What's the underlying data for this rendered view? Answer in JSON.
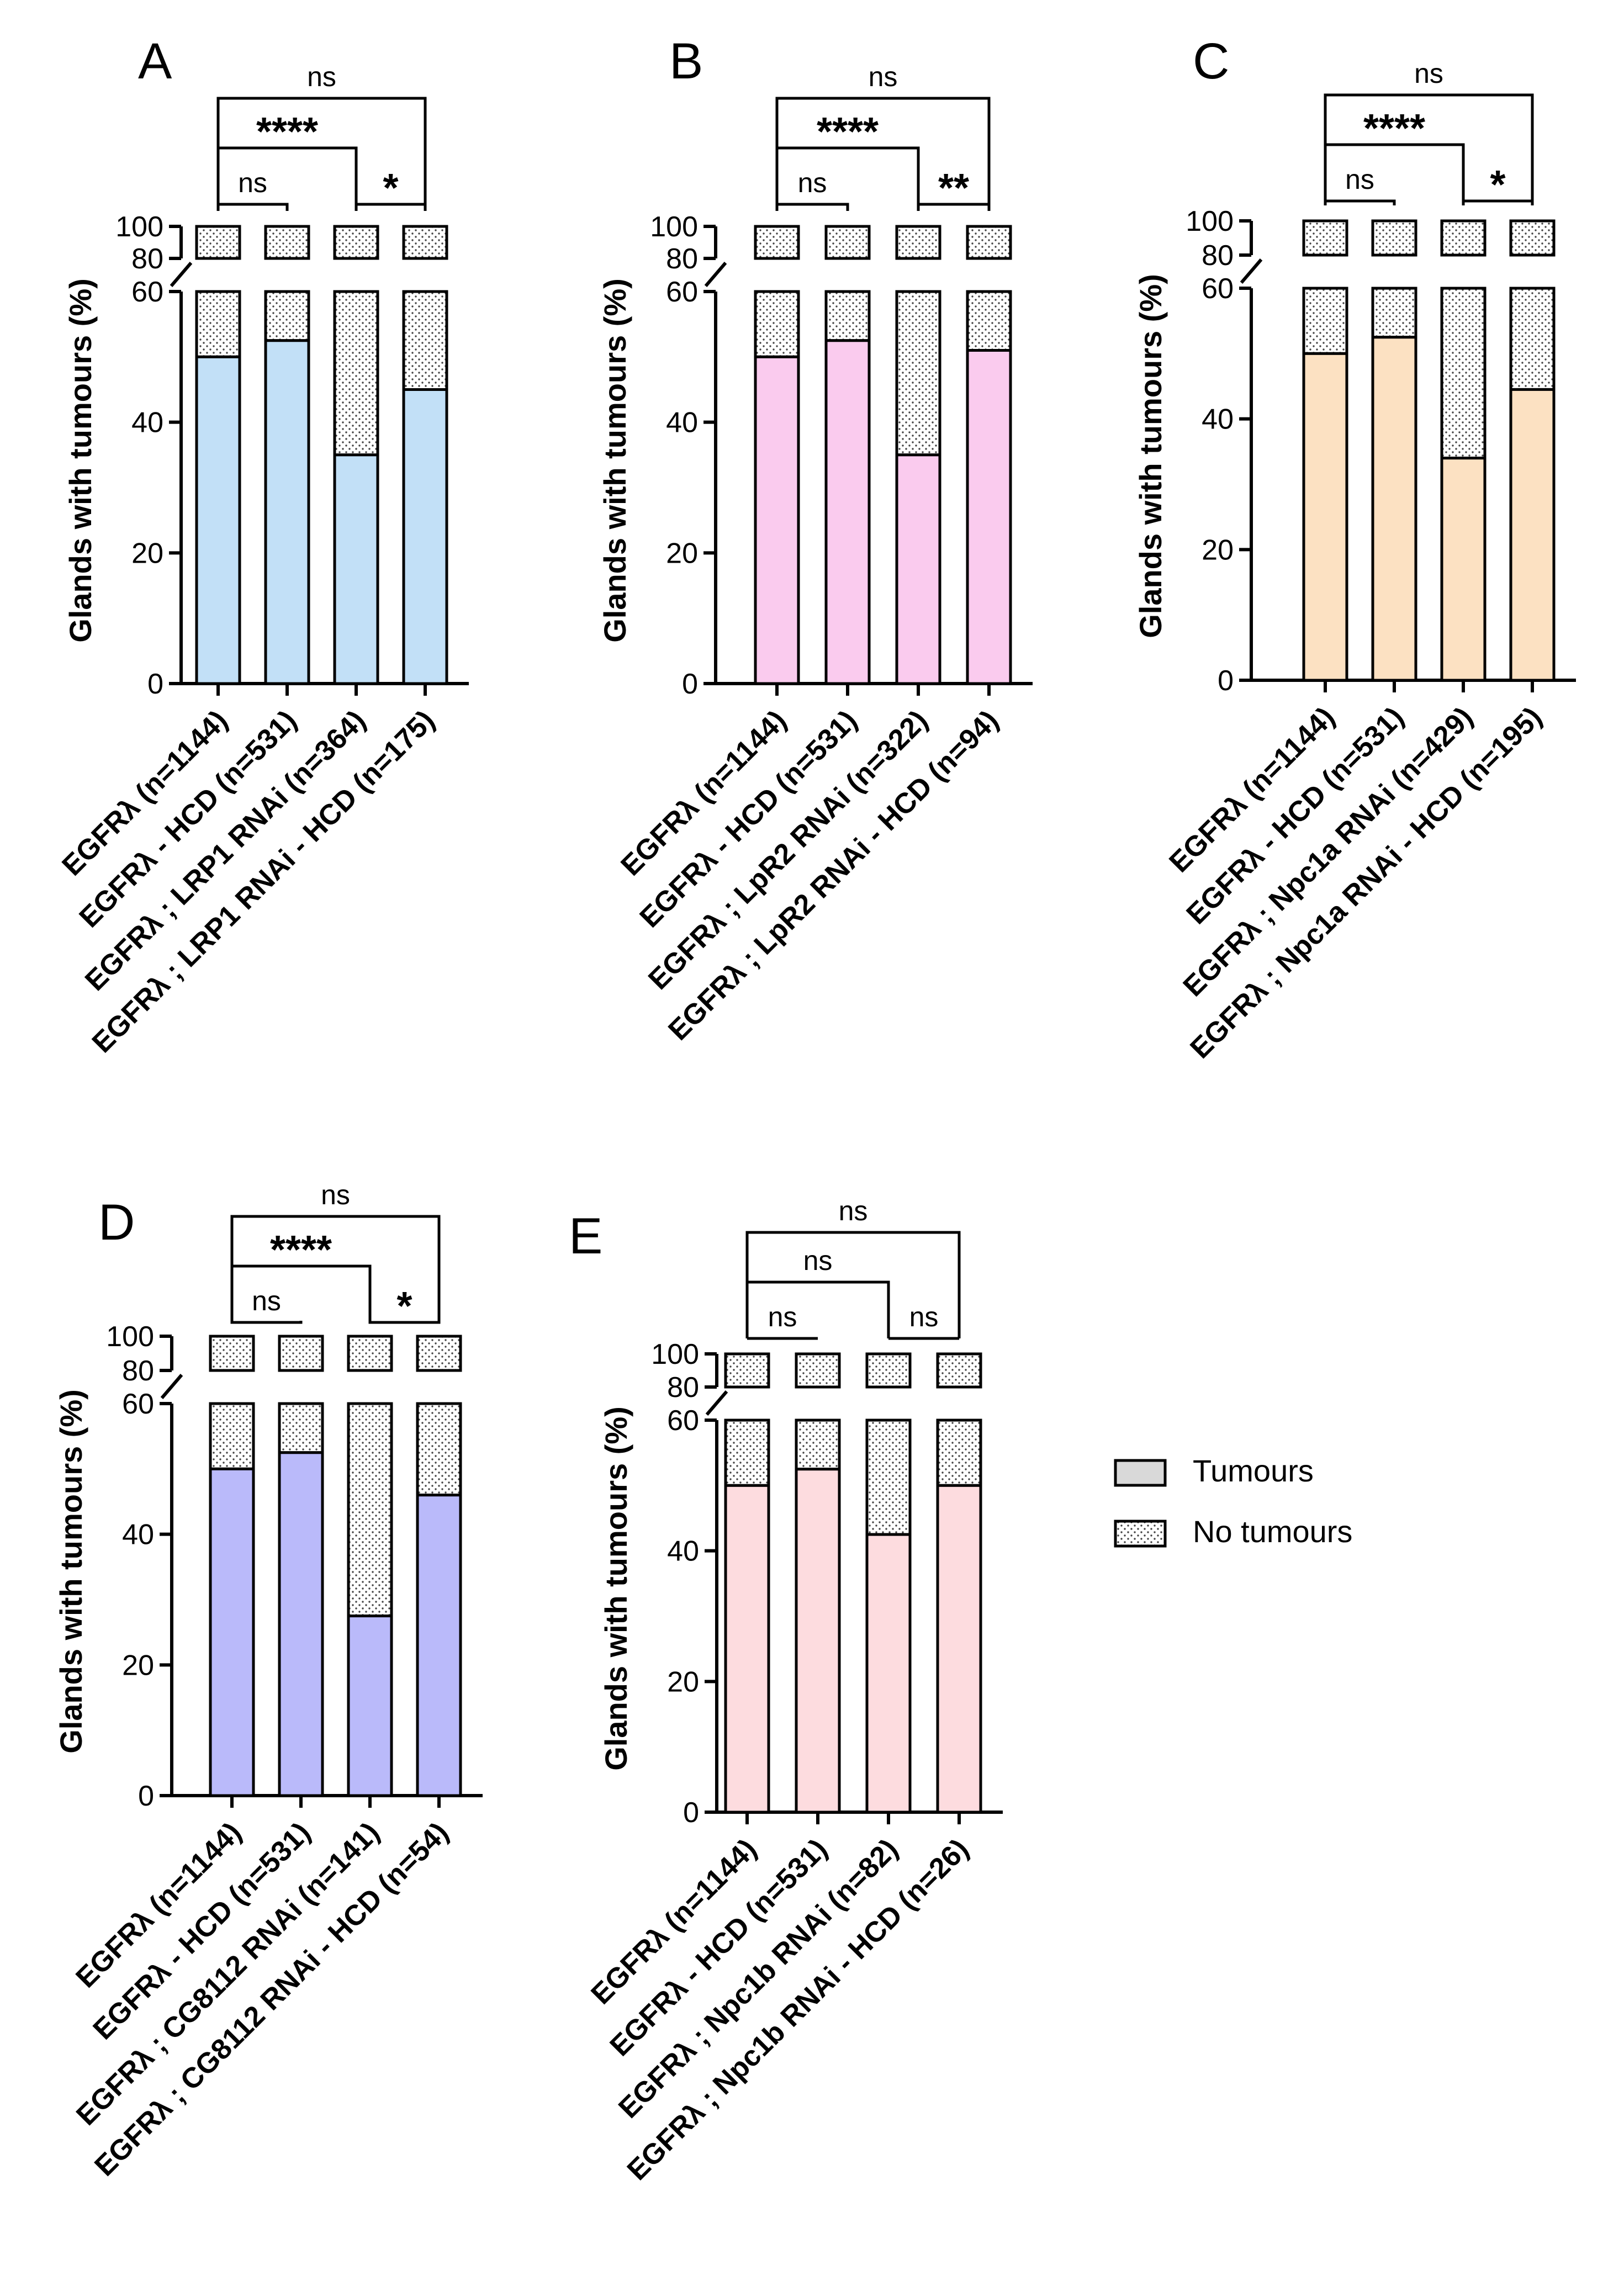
{
  "legend": {
    "items": [
      {
        "label": "Tumours",
        "pattern": "solid",
        "color": "#d9d9d9"
      },
      {
        "label": "No tumours",
        "pattern": "dots",
        "color": "#ffffff"
      }
    ]
  },
  "chart_data": [
    {
      "panel": "A",
      "type": "bar",
      "stacked": true,
      "ylabel": "Glands with tumours (%)",
      "yaxis": {
        "segments": [
          [
            0,
            60
          ],
          [
            80,
            100
          ]
        ],
        "ticks": [
          0,
          20,
          40,
          60,
          80,
          100
        ],
        "break_between": [
          60,
          80
        ]
      },
      "color": "#c2e0f7",
      "categories": [
        "EGFRλ (n=1144)",
        "EGFRλ - HCD (n=531)",
        "EGFRλ ; LRP1 RNAi (n=364)",
        "EGFRλ ; LRP1 RNAi - HCD (n=175)"
      ],
      "series": [
        {
          "name": "Tumours",
          "values": [
            50,
            52.5,
            35,
            45
          ]
        },
        {
          "name": "No tumours",
          "values": [
            50,
            47.5,
            65,
            55
          ]
        }
      ],
      "significance": [
        {
          "from": 0,
          "to": 1,
          "label": "ns",
          "level": 1
        },
        {
          "from": 2,
          "to": 3,
          "label": "*",
          "level": 1
        },
        {
          "from": 0,
          "to": 2,
          "label": "****",
          "level": 2
        },
        {
          "from": 0,
          "to": 3,
          "label": "ns",
          "level": 3
        }
      ]
    },
    {
      "panel": "B",
      "type": "bar",
      "stacked": true,
      "ylabel": "Glands with tumours (%)",
      "yaxis": {
        "segments": [
          [
            0,
            60
          ],
          [
            80,
            100
          ]
        ],
        "ticks": [
          0,
          20,
          40,
          60,
          80,
          100
        ],
        "break_between": [
          60,
          80
        ]
      },
      "color": "#facbee",
      "categories": [
        "EGFRλ (n=1144)",
        "EGFRλ - HCD (n=531)",
        "EGFRλ ; LpR2 RNAi (n=322)",
        "EGFRλ ; LpR2 RNAi - HCD (n=94)"
      ],
      "series": [
        {
          "name": "Tumours",
          "values": [
            50,
            52.5,
            35,
            51
          ]
        },
        {
          "name": "No tumours",
          "values": [
            50,
            47.5,
            65,
            49
          ]
        }
      ],
      "significance": [
        {
          "from": 0,
          "to": 1,
          "label": "ns",
          "level": 1
        },
        {
          "from": 2,
          "to": 3,
          "label": "**",
          "level": 1
        },
        {
          "from": 0,
          "to": 2,
          "label": "****",
          "level": 2
        },
        {
          "from": 0,
          "to": 3,
          "label": "ns",
          "level": 3
        }
      ]
    },
    {
      "panel": "C",
      "type": "bar",
      "stacked": true,
      "ylabel": "Glands with tumours (%)",
      "yaxis": {
        "segments": [
          [
            0,
            60
          ],
          [
            80,
            100
          ]
        ],
        "ticks": [
          0,
          20,
          40,
          60,
          80,
          100
        ],
        "break_between": [
          60,
          80
        ]
      },
      "color": "#fce1c2",
      "categories": [
        "EGFRλ (n=1144)",
        "EGFRλ - HCD (n=531)",
        "EGFRλ ; Npc1a RNAi (n=429)",
        "EGFRλ ; Npc1a RNAi - HCD (n=195)"
      ],
      "series": [
        {
          "name": "Tumours",
          "values": [
            50,
            52.5,
            34,
            44.5
          ]
        },
        {
          "name": "No tumours",
          "values": [
            50,
            47.5,
            66,
            55.5
          ]
        }
      ],
      "significance": [
        {
          "from": 0,
          "to": 1,
          "label": "ns",
          "level": 1
        },
        {
          "from": 2,
          "to": 3,
          "label": "*",
          "level": 1
        },
        {
          "from": 0,
          "to": 2,
          "label": "****",
          "level": 2
        },
        {
          "from": 0,
          "to": 3,
          "label": "ns",
          "level": 3
        }
      ]
    },
    {
      "panel": "D",
      "type": "bar",
      "stacked": true,
      "ylabel": "Glands with tumours (%)",
      "yaxis": {
        "segments": [
          [
            0,
            60
          ],
          [
            80,
            100
          ]
        ],
        "ticks": [
          0,
          20,
          40,
          60,
          80,
          100
        ],
        "break_between": [
          60,
          80
        ]
      },
      "color": "#babafa",
      "categories": [
        "EGFRλ (n=1144)",
        "EGFRλ - HCD (n=531)",
        "EGFRλ ; CG8112 RNAi (n=141)",
        "EGFRλ ; CG8112 RNAi - HCD (n=54)"
      ],
      "series": [
        {
          "name": "Tumours",
          "values": [
            50,
            52.5,
            27.5,
            46
          ]
        },
        {
          "name": "No tumours",
          "values": [
            50,
            47.5,
            72.5,
            54
          ]
        }
      ],
      "significance": [
        {
          "from": 0,
          "to": 1,
          "label": "ns",
          "level": 1
        },
        {
          "from": 2,
          "to": 3,
          "label": "*",
          "level": 1
        },
        {
          "from": 0,
          "to": 2,
          "label": "****",
          "level": 2
        },
        {
          "from": 0,
          "to": 3,
          "label": "ns",
          "level": 3
        }
      ]
    },
    {
      "panel": "E",
      "type": "bar",
      "stacked": true,
      "ylabel": "Glands with tumours (%)",
      "yaxis": {
        "segments": [
          [
            0,
            60
          ],
          [
            80,
            100
          ]
        ],
        "ticks": [
          0,
          20,
          40,
          60,
          80,
          100
        ],
        "break_between": [
          60,
          80
        ]
      },
      "color": "#fddcdf",
      "categories": [
        "EGFRλ (n=1144)",
        "EGFRλ - HCD (n=531)",
        "EGFRλ ; Npc1b RNAi (n=82)",
        "EGFRλ ; Npc1b RNAi - HCD (n=26)"
      ],
      "series": [
        {
          "name": "Tumours",
          "values": [
            50,
            52.5,
            42.5,
            50
          ]
        },
        {
          "name": "No tumours",
          "values": [
            50,
            47.5,
            57.5,
            50
          ]
        }
      ],
      "significance": [
        {
          "from": 0,
          "to": 1,
          "label": "ns",
          "level": 1
        },
        {
          "from": 2,
          "to": 3,
          "label": "ns",
          "level": 1
        },
        {
          "from": 0,
          "to": 2,
          "label": "ns",
          "level": 2
        },
        {
          "from": 0,
          "to": 3,
          "label": "ns",
          "level": 3
        }
      ]
    }
  ]
}
